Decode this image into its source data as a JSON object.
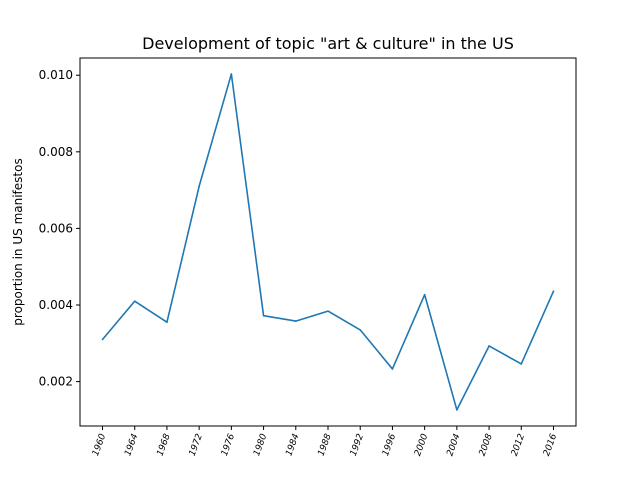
{
  "chart_data": {
    "type": "line",
    "title": "Development of topic \"art & culture\" in the US",
    "xlabel": "",
    "ylabel": "proportion in US manifestos",
    "categories": [
      "1960",
      "1964",
      "1968",
      "1972",
      "1976",
      "1980",
      "1984",
      "1988",
      "1992",
      "1996",
      "2000",
      "2004",
      "2008",
      "2012",
      "2016"
    ],
    "values": [
      0.0031,
      0.0041,
      0.00355,
      0.0071,
      0.01003,
      0.00372,
      0.00358,
      0.00384,
      0.00335,
      0.00233,
      0.00427,
      0.00126,
      0.00293,
      0.00246,
      0.00436
    ],
    "y_ticks": [
      "0.002",
      "0.004",
      "0.006",
      "0.008",
      "0.010"
    ],
    "ylim": [
      0.00084,
      0.01045
    ],
    "grid": false,
    "colors": {
      "line": "#1f77b4"
    }
  }
}
